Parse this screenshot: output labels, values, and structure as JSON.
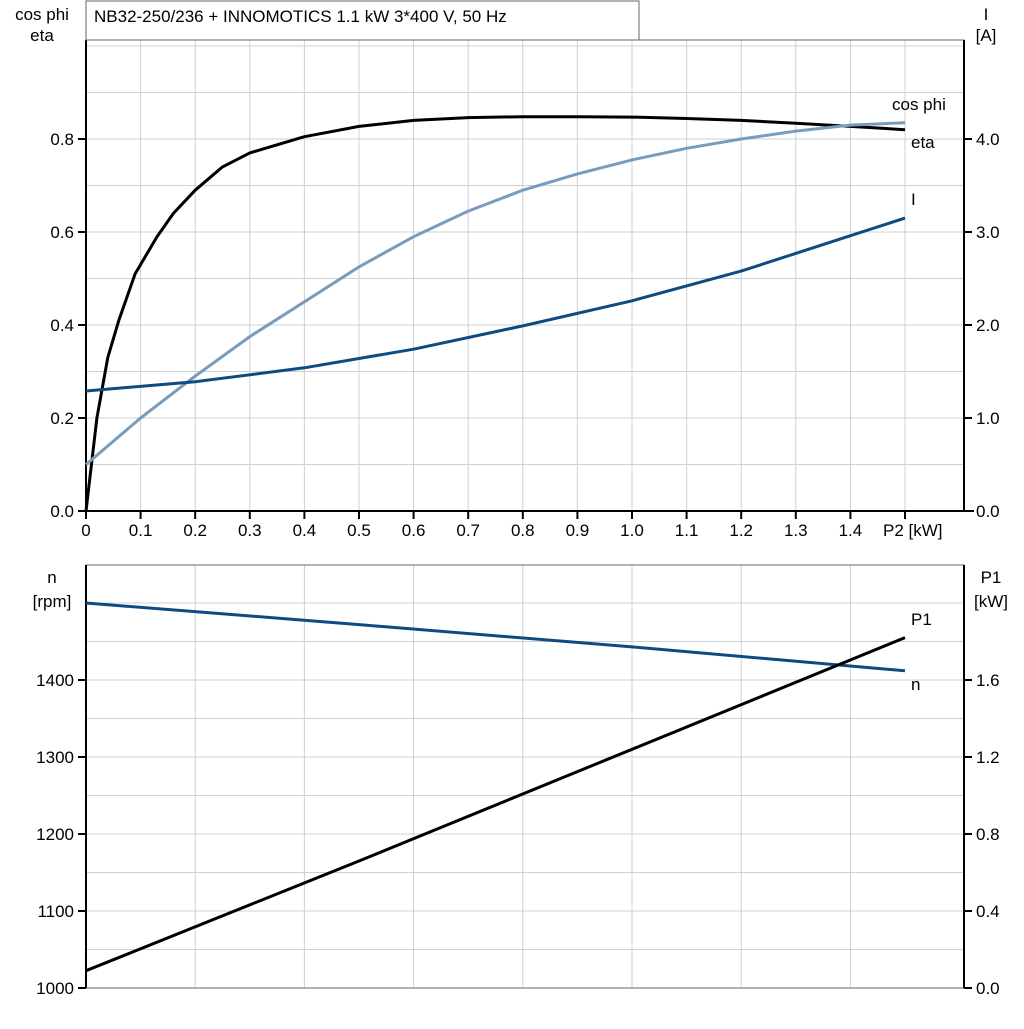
{
  "chart_data": [
    {
      "type": "line",
      "title": "NB32-250/236 + INNOMOTICS   1.1 kW   3*400 V, 50 Hz",
      "xlabel": "P2 [kW]",
      "ylabel_left": [
        "cos phi",
        "eta"
      ],
      "ylabel_right": [
        "I",
        "[A]"
      ],
      "xlim": [
        0,
        1.6
      ],
      "ylim_left": [
        0,
        1.0
      ],
      "ylim_right": [
        0,
        5.0
      ],
      "x_ticks": [
        "0",
        "0.1",
        "0.2",
        "0.3",
        "0.4",
        "0.5",
        "0.6",
        "0.7",
        "0.8",
        "0.9",
        "1.0",
        "1.1",
        "1.2",
        "1.3",
        "1.4"
      ],
      "y_ticks_left": [
        "0.0",
        "0.2",
        "0.4",
        "0.6",
        "0.8"
      ],
      "y_ticks_right": [
        "0.0",
        "1.0",
        "2.0",
        "3.0",
        "4.0"
      ],
      "grid": true,
      "series": [
        {
          "name": "eta",
          "axis": "left",
          "color": "#000000",
          "x": [
            0,
            0.02,
            0.04,
            0.06,
            0.09,
            0.13,
            0.16,
            0.2,
            0.25,
            0.3,
            0.4,
            0.5,
            0.6,
            0.7,
            0.8,
            0.9,
            1.0,
            1.1,
            1.2,
            1.3,
            1.4,
            1.5
          ],
          "y": [
            0,
            0.2,
            0.33,
            0.41,
            0.51,
            0.59,
            0.64,
            0.69,
            0.74,
            0.77,
            0.805,
            0.827,
            0.84,
            0.846,
            0.848,
            0.848,
            0.847,
            0.844,
            0.84,
            0.834,
            0.827,
            0.82
          ]
        },
        {
          "name": "cos phi",
          "axis": "left",
          "color": "#7a9cbc",
          "x": [
            0,
            0.1,
            0.2,
            0.3,
            0.4,
            0.5,
            0.6,
            0.7,
            0.8,
            0.9,
            1.0,
            1.1,
            1.2,
            1.3,
            1.4,
            1.5
          ],
          "y": [
            0.1,
            0.2,
            0.29,
            0.375,
            0.45,
            0.525,
            0.59,
            0.645,
            0.69,
            0.725,
            0.755,
            0.78,
            0.8,
            0.817,
            0.83,
            0.835
          ]
        },
        {
          "name": "I",
          "axis": "right",
          "color": "#0f4a80",
          "x": [
            0,
            0.2,
            0.4,
            0.6,
            0.8,
            1.0,
            1.2,
            1.4,
            1.5
          ],
          "y": [
            1.29,
            1.39,
            1.54,
            1.74,
            1.99,
            2.26,
            2.58,
            2.96,
            3.15
          ]
        }
      ]
    },
    {
      "type": "line",
      "ylabel_left": [
        "n",
        "[rpm]"
      ],
      "ylabel_right": [
        "P1",
        "[kW]"
      ],
      "xlim": [
        0,
        1.6
      ],
      "ylim_left": [
        1000,
        1550
      ],
      "ylim_right": [
        0,
        2.2
      ],
      "y_ticks_left": [
        "1000",
        "1100",
        "1200",
        "1300",
        "1400"
      ],
      "y_ticks_right": [
        "0.0",
        "0.4",
        "0.8",
        "1.2",
        "1.6"
      ],
      "grid": true,
      "series": [
        {
          "name": "n",
          "axis": "left",
          "color": "#0f4a80",
          "x": [
            0,
            0.5,
            1.0,
            1.5
          ],
          "y": [
            1500,
            1472,
            1443,
            1412
          ]
        },
        {
          "name": "P1",
          "axis": "right",
          "color": "#000000",
          "x": [
            0,
            0.5,
            1.0,
            1.5
          ],
          "y": [
            0.09,
            0.66,
            1.24,
            1.82
          ]
        }
      ]
    }
  ]
}
